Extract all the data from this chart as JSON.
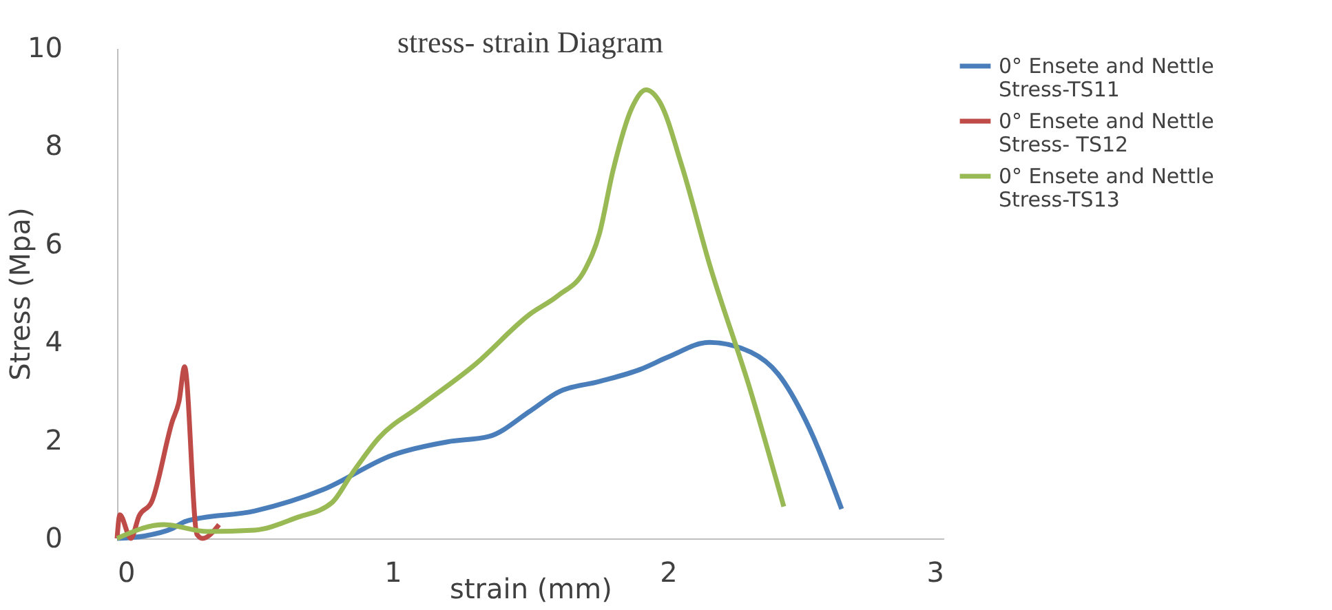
{
  "chart_data": {
    "type": "line",
    "title": "stress- strain Diagram",
    "xlabel": "strain (mm)",
    "ylabel": "Stress (Mpa)",
    "xlim": [
      0,
      3
    ],
    "xticks": [
      0,
      1,
      2,
      3
    ],
    "ylim": [
      0,
      10
    ],
    "yticks": [
      0,
      2,
      4,
      6,
      8,
      10
    ],
    "grid": false,
    "legend": "top right",
    "marker": "none",
    "line_style": "solid",
    "series": [
      {
        "name": "0° Ensete and Nettle Stress-TS11",
        "color": "#4a7ebb",
        "x": [
          0,
          0.1,
          0.2,
          0.25,
          0.5,
          0.75,
          1.0,
          1.2,
          1.35,
          1.5,
          1.6,
          1.75,
          1.9,
          2.0,
          2.15,
          2.3,
          2.4,
          2.5,
          2.63
        ],
        "values": [
          0,
          0.05,
          0.2,
          0.35,
          0.56,
          1.0,
          1.7,
          1.97,
          2.08,
          2.6,
          2.98,
          3.2,
          3.45,
          3.7,
          4.0,
          3.8,
          3.35,
          2.4,
          0.6
        ]
      },
      {
        "name": "0° Ensete and Nettle Stress- TS12",
        "color": "#be4b48",
        "x": [
          0,
          0.01,
          0.05,
          0.08,
          0.125,
          0.2,
          0.225,
          0.245,
          0.29,
          0.31,
          0.37
        ],
        "values": [
          0,
          0.48,
          0,
          0.46,
          0.74,
          2.38,
          2.8,
          3.5,
          0.08,
          0,
          0.28
        ]
      },
      {
        "name": "0° Ensete and Nettle Stress-TS13",
        "color": "#98b954",
        "x": [
          0,
          0.17,
          0.33,
          0.5,
          0.65,
          0.78,
          0.85,
          0.95,
          1.1,
          1.3,
          1.5,
          1.6,
          1.7,
          1.75,
          1.8,
          1.87,
          1.92,
          1.97,
          2.05,
          2.15,
          2.3,
          2.42
        ],
        "values": [
          0,
          0.28,
          0.14,
          0.17,
          0.42,
          0.73,
          1.3,
          2.05,
          2.7,
          3.55,
          4.58,
          4.95,
          5.5,
          6.2,
          7.5,
          8.8,
          9.15,
          8.9,
          7.6,
          5.6,
          3.0,
          0.65
        ]
      }
    ]
  }
}
